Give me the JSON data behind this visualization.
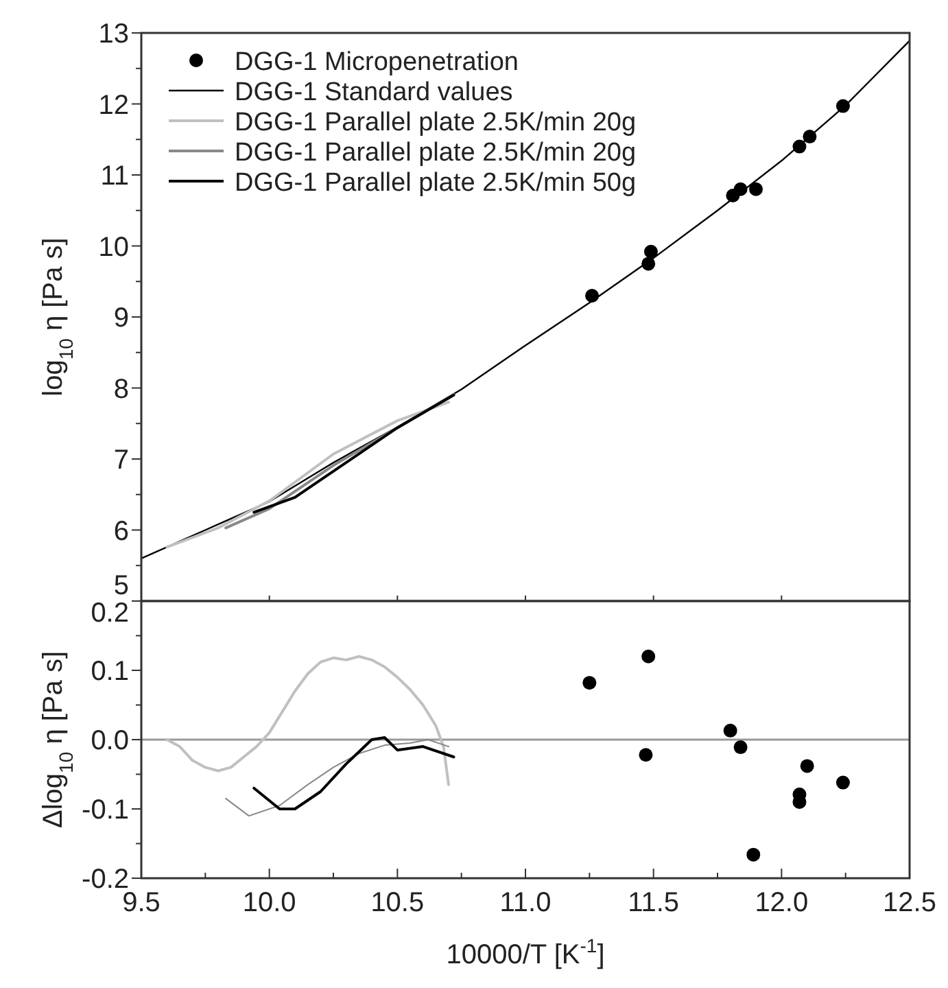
{
  "chart_data": [
    {
      "type": "line",
      "ylabel": "log$_{10}$ η [Pa s]",
      "xlim": [
        9.5,
        12.5
      ],
      "xticks": [
        {
          "value": 9.5,
          "label": null
        },
        {
          "value": 10,
          "label": null
        },
        {
          "value": 10.5,
          "label": null
        },
        {
          "value": 11,
          "label": null
        },
        {
          "value": 11.5,
          "label": null
        },
        {
          "value": 12,
          "label": null
        },
        {
          "value": 12.5,
          "label": null
        }
      ],
      "ylim": [
        5,
        13
      ],
      "yticks": [
        5,
        {
          "value": 5.5,
          "label": null
        },
        6,
        {
          "value": 6.5,
          "label": null
        },
        7,
        {
          "value": 7.5,
          "label": null
        },
        8,
        {
          "value": 8.5,
          "label": null
        },
        9,
        {
          "value": 9.5,
          "label": null
        },
        10,
        {
          "value": 10.5,
          "label": null
        },
        11,
        {
          "value": 11.5,
          "label": null
        },
        12,
        {
          "value": 12.5,
          "label": null
        },
        13
      ],
      "tick_labels": "y",
      "legend": "top left",
      "series": [
        {
          "name": "DGG-1 Micropenetration",
          "type": "scatter",
          "marker": "circle",
          "color": "#000000",
          "x": [
            11.26,
            11.48,
            11.49,
            11.81,
            11.84,
            11.9,
            12.07,
            12.11,
            12.24
          ],
          "values": [
            9.3,
            9.75,
            9.92,
            10.71,
            10.8,
            10.8,
            11.4,
            11.54,
            11.97
          ]
        },
        {
          "name": "DGG-1 Standard values",
          "marker": "none",
          "color": "#000000",
          "x": [
            9.5,
            9.75,
            10.0,
            10.25,
            10.5,
            10.75,
            11.0,
            11.25,
            11.5,
            11.75,
            12.0,
            12.25,
            12.5
          ],
          "values": [
            5.6,
            6.0,
            6.4,
            6.95,
            7.45,
            7.98,
            8.6,
            9.2,
            9.83,
            10.5,
            11.2,
            11.98,
            12.89
          ]
        },
        {
          "name": "DGG-1 Parallel plate 2.5K/min 20g",
          "marker": "none",
          "color": "#c0c0c0",
          "x": [
            9.6,
            9.8,
            10.0,
            10.25,
            10.5,
            10.7
          ],
          "values": [
            5.76,
            6.03,
            6.41,
            7.07,
            7.54,
            7.8
          ]
        },
        {
          "name": "DGG-1 Parallel plate 2.5K/min 20g",
          "marker": "none",
          "color": "#888888",
          "x": [
            9.83,
            10.0,
            10.25,
            10.5,
            10.72
          ],
          "values": [
            6.03,
            6.3,
            6.91,
            7.44,
            7.91
          ]
        },
        {
          "name": "DGG-1 Parallel plate 2.5K/min 50g",
          "marker": "none",
          "color": "#000000",
          "x": [
            9.94,
            10.1,
            10.3,
            10.5,
            10.72
          ],
          "values": [
            6.25,
            6.46,
            6.95,
            7.44,
            7.9
          ]
        }
      ]
    },
    {
      "type": "line",
      "xlabel": "10000/T [K$^{-1}$]",
      "ylabel": "Δlog$_{10}$ η [Pa s]",
      "xlim": [
        9.5,
        12.5
      ],
      "xticks": [
        9.5,
        {
          "value": 9.75,
          "label": null
        },
        {
          "value": 10,
          "label": "10.0"
        },
        {
          "value": 10.25,
          "label": null
        },
        10.5,
        {
          "value": 10.75,
          "label": null
        },
        {
          "value": 11,
          "label": "11.0"
        },
        {
          "value": 11.25,
          "label": null
        },
        11.5,
        {
          "value": 11.75,
          "label": null
        },
        {
          "value": 12,
          "label": "12.0"
        },
        {
          "value": 12.25,
          "label": null
        },
        12.5
      ],
      "ylim": [
        -0.2,
        0.2
      ],
      "yticks": [
        -0.2,
        {
          "value": -0.15,
          "label": null
        },
        -0.1,
        {
          "value": -0.05,
          "label": null
        },
        {
          "value": 0,
          "label": "0.0"
        },
        {
          "value": 0.05,
          "label": null
        },
        0.1,
        {
          "value": 0.15,
          "label": null
        },
        0.2
      ],
      "ref_lines": [
        {
          "axis": "y",
          "value": 0,
          "color": "#999999"
        }
      ],
      "series": [
        {
          "marker": "none",
          "color": "#c0c0c0",
          "x": [
            9.6,
            9.65,
            9.7,
            9.75,
            9.8,
            9.85,
            9.9,
            9.95,
            10.0,
            10.05,
            10.1,
            10.15,
            10.2,
            10.25,
            10.3,
            10.35,
            10.4,
            10.45,
            10.5,
            10.55,
            10.6,
            10.65,
            10.68,
            10.7
          ],
          "values": [
            0.0,
            -0.01,
            -0.03,
            -0.04,
            -0.045,
            -0.04,
            -0.025,
            -0.01,
            0.01,
            0.04,
            0.07,
            0.095,
            0.112,
            0.118,
            0.115,
            0.12,
            0.115,
            0.105,
            0.09,
            0.072,
            0.05,
            0.02,
            -0.01,
            -0.065
          ]
        },
        {
          "marker": "none",
          "color": "#888888",
          "x": [
            9.83,
            9.92,
            10.04,
            10.15,
            10.25,
            10.35,
            10.45,
            10.55,
            10.62,
            10.7
          ],
          "values": [
            -0.085,
            -0.11,
            -0.095,
            -0.065,
            -0.04,
            -0.02,
            -0.008,
            -0.005,
            0.0,
            -0.01
          ]
        },
        {
          "marker": "none",
          "color": "#000000",
          "x": [
            9.94,
            10.04,
            10.1,
            10.2,
            10.3,
            10.4,
            10.45,
            10.5,
            10.6,
            10.72
          ],
          "values": [
            -0.07,
            -0.1,
            -0.1,
            -0.075,
            -0.035,
            0.0,
            0.003,
            -0.015,
            -0.01,
            -0.025
          ]
        },
        {
          "type": "scatter",
          "marker": "circle",
          "color": "#000000",
          "x": [
            11.25,
            11.48,
            11.47,
            11.8,
            11.84,
            11.89,
            12.07,
            12.07,
            12.1,
            12.24
          ],
          "values": [
            0.082,
            0.12,
            -0.022,
            0.013,
            -0.011,
            -0.166,
            -0.079,
            -0.09,
            -0.038,
            -0.062
          ]
        }
      ]
    }
  ]
}
